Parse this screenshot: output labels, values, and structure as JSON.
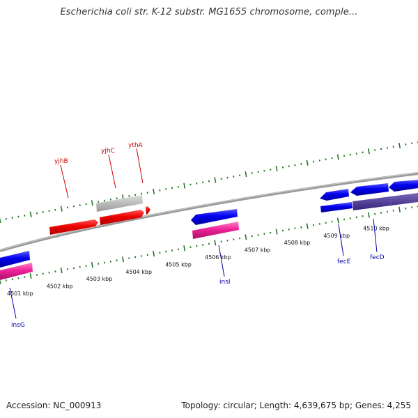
{
  "title": "Escherichia coli str. K-12 substr. MG1655 chromosome, comple...",
  "footer": {
    "accession": "Accession: NC_000913",
    "summary": "Topology: circular; Length: 4,639,675 bp; Genes: 4,255"
  },
  "scale": {
    "unit": "kbp",
    "tick_labels": [
      "4501 kbp",
      "4502 kbp",
      "4503 kbp",
      "4504 kbp",
      "4505 kbp",
      "4506 kbp",
      "4507 kbp",
      "4508 kbp",
      "4509 kbp",
      "4510 kbp"
    ]
  },
  "genes": [
    {
      "name": "yjhB",
      "color": "#cc0000"
    },
    {
      "name": "yjhC",
      "color": "#cc0000"
    },
    {
      "name": "ythA",
      "color": "#cc0000"
    },
    {
      "name": "insI",
      "color": "#0000aa"
    },
    {
      "name": "fecE",
      "color": "#0000aa"
    },
    {
      "name": "fecD",
      "color": "#0000aa"
    },
    {
      "name": "insG",
      "color": "#0000aa"
    }
  ],
  "colors": {
    "backbone": "#888888",
    "tick_marks": "#227722",
    "forward_genes": "#ff0000",
    "reverse_genes": "#0000ee",
    "insertion_elements": "#ee3399",
    "pseudo_gene": "#bbbbbb",
    "fec_shadow": "#554499"
  }
}
